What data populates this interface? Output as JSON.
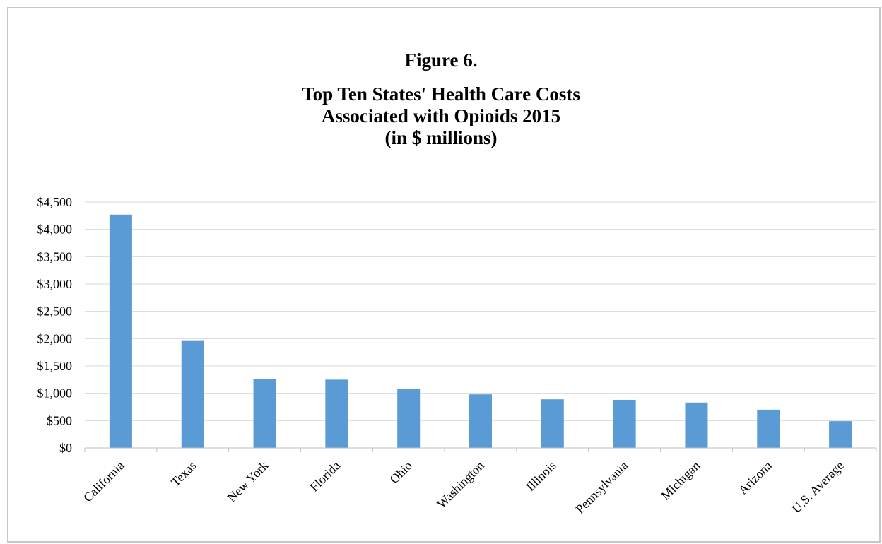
{
  "figure_label": "Figure 6.",
  "title_lines": [
    "Top Ten States' Health Care Costs",
    "Associated with Opioids 2015",
    "(in $ millions)"
  ],
  "colors": {
    "bar": "#5b9bd5",
    "grid": "#d9d9d9",
    "axis": "#bfbfbf"
  },
  "chart_data": {
    "type": "bar",
    "title": "Top Ten States' Health Care Costs Associated with Opioids 2015 (in $ millions)",
    "xlabel": "",
    "ylabel": "",
    "categories": [
      "California",
      "Texas",
      "New York",
      "Florida",
      "Ohio",
      "Washington",
      "Illinois",
      "Pennsylvania",
      "Michigan",
      "Arizona",
      "U.S. Average"
    ],
    "values": [
      4270,
      1970,
      1260,
      1250,
      1080,
      980,
      890,
      880,
      830,
      700,
      490
    ],
    "ylim": [
      0,
      4500
    ],
    "ytick_values": [
      0,
      500,
      1000,
      1500,
      2000,
      2500,
      3000,
      3500,
      4000,
      4500
    ],
    "ytick_labels": [
      "$0",
      "$500",
      "$1,000",
      "$1,500",
      "$2,000",
      "$2,500",
      "$3,000",
      "$3,500",
      "$4,000",
      "$4,500"
    ],
    "grid": true,
    "legend": "none"
  }
}
